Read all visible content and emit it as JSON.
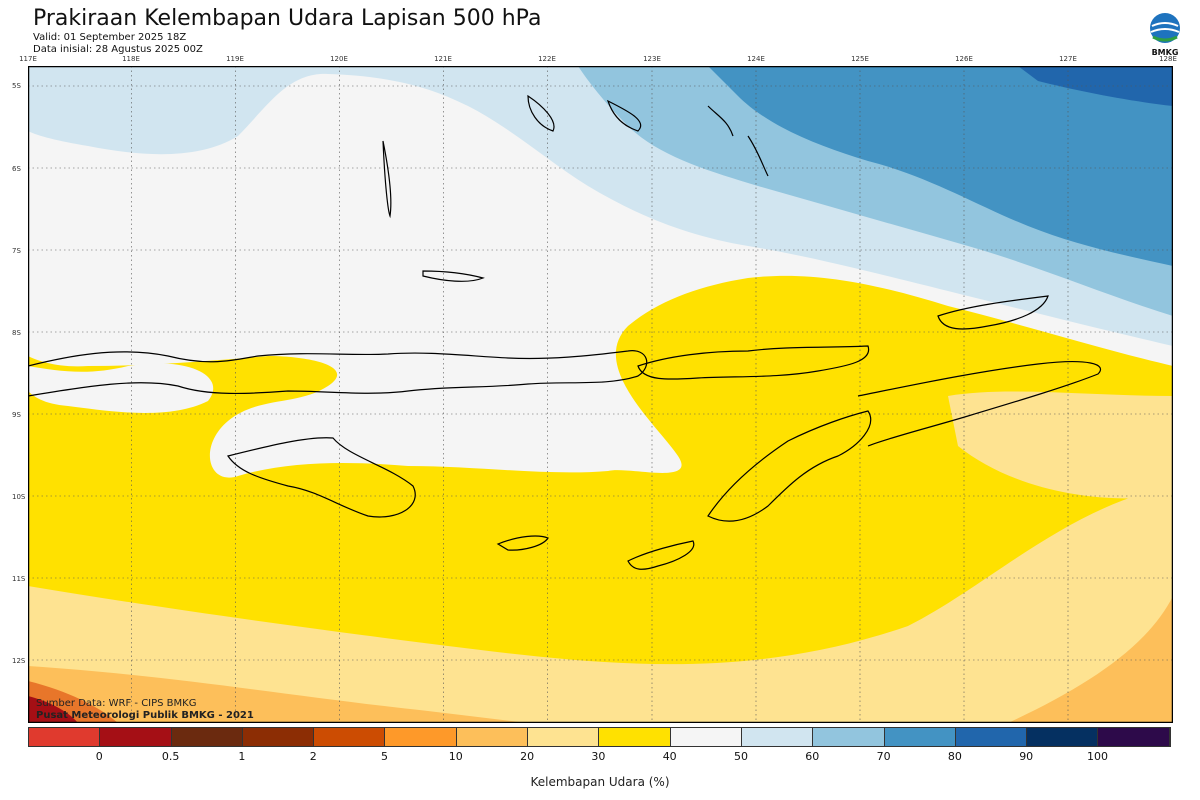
{
  "header": {
    "title": "Prakiraan Kelembapan Udara Lapisan 500 hPa",
    "valid": "Valid: 01 September 2025 18Z",
    "init": "Data inisial: 28 Agustus 2025 00Z",
    "logo_text": "BMKG"
  },
  "axes": {
    "lon_labels": [
      "117E",
      "118E",
      "119E",
      "120E",
      "121E",
      "122E",
      "123E",
      "124E",
      "125E",
      "126E",
      "127E",
      "128E"
    ],
    "lat_labels": [
      "5S",
      "6S",
      "7S",
      "8S",
      "9S",
      "10S",
      "11S",
      "12S"
    ]
  },
  "credits": {
    "source": "Sumber Data: WRF - CIPS BMKG",
    "org": "Pusat Meteorologi Publik BMKG - 2021"
  },
  "legend": {
    "title": "Kelembapan Udara (%)",
    "ticks": [
      "0",
      "0.5",
      "1",
      "2",
      "5",
      "10",
      "20",
      "30",
      "40",
      "50",
      "60",
      "70",
      "80",
      "90",
      "100"
    ],
    "colors": [
      "#e03a2e",
      "#a50f15",
      "#6b2a0f",
      "#8c2d04",
      "#cc4c02",
      "#fe9929",
      "#fdbf5a",
      "#fee391",
      "#ffe100",
      "#f5f5f5",
      "#d1e5f0",
      "#92c5de",
      "#4393c3",
      "#2166ac",
      "#053061",
      "#2d0a4a"
    ]
  },
  "colors": {
    "humid_40_50": "#f5f5f5",
    "humid_30_40": "#ffe100",
    "humid_20_30": "#fee391",
    "humid_10_20": "#fdbf5a",
    "humid_50_60": "#d1e5f0",
    "humid_60_70": "#92c5de",
    "humid_70_80": "#4393c3",
    "humid_80_90": "#2166ac"
  }
}
